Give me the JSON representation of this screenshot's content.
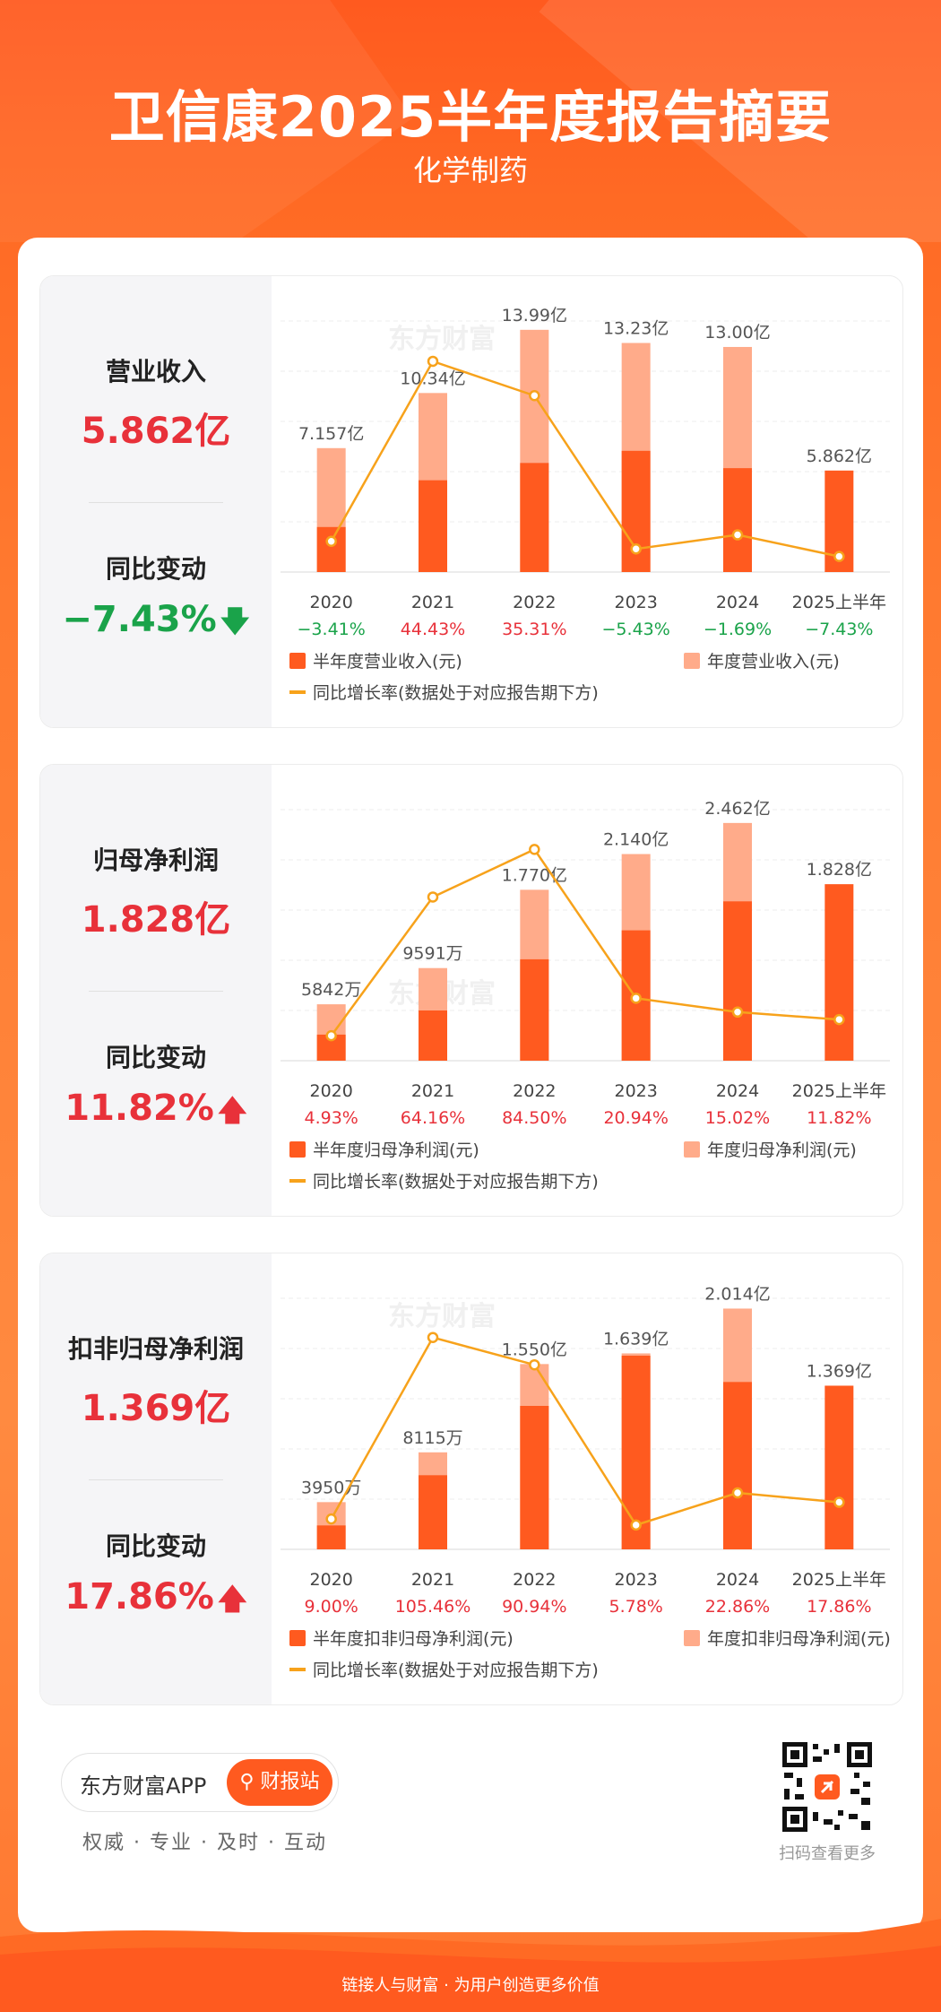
{
  "header": {
    "title": "卫信康2025半年度报告摘要",
    "subtitle": "化学制药"
  },
  "colors": {
    "bar_half": "#ff5a1f",
    "bar_annual": "#ffab8a",
    "line": "#f7a21b",
    "positive": "#e8313a",
    "negative": "#1aa34a",
    "watermark": "东方财富"
  },
  "sections": [
    {
      "metric_label": "营业收入",
      "metric_value": "5.862亿",
      "change_label": "同比变动",
      "change_value": "−7.43%",
      "change_direction": "down"
    },
    {
      "metric_label": "归母净利润",
      "metric_value": "1.828亿",
      "change_label": "同比变动",
      "change_value": "11.82%",
      "change_direction": "up"
    },
    {
      "metric_label": "扣非归母净利润",
      "metric_value": "1.369亿",
      "change_label": "同比变动",
      "change_value": "17.86%",
      "change_direction": "up"
    }
  ],
  "chart_data": [
    {
      "type": "bar",
      "categories": [
        "2020",
        "2021",
        "2022",
        "2023",
        "2024",
        "2025上半年"
      ],
      "series": [
        {
          "name": "半年度营业收入(元)",
          "values": [
            2.6,
            5.3,
            6.3,
            7.0,
            6.0,
            5.862
          ]
        },
        {
          "name": "年度营业收入(元)",
          "values": [
            7.157,
            10.34,
            13.99,
            13.23,
            13.0,
            null
          ]
        },
        {
          "name": "同比增长率(数据处于对应报告期下方)",
          "values": [
            -3.41,
            44.43,
            35.31,
            -5.43,
            -1.69,
            -7.43
          ]
        }
      ],
      "bar_labels": [
        "7.157亿",
        "10.34亿",
        "13.99亿",
        "13.23亿",
        "13.00亿",
        "5.862亿"
      ],
      "growth_labels": [
        "−3.41%",
        "44.43%",
        "35.31%",
        "−5.43%",
        "−1.69%",
        "−7.43%"
      ],
      "ylim": [
        0,
        14.5
      ],
      "line_range": [
        -8,
        48
      ],
      "grid": true
    },
    {
      "type": "bar",
      "categories": [
        "2020",
        "2021",
        "2022",
        "2023",
        "2024",
        "2025上半年"
      ],
      "series": [
        {
          "name": "半年度归母净利润(元)",
          "values": [
            0.27,
            0.52,
            1.05,
            1.35,
            1.65,
            1.828
          ]
        },
        {
          "name": "年度归母净利润(元)",
          "values": [
            0.5842,
            0.9591,
            1.77,
            2.14,
            2.462,
            null
          ]
        },
        {
          "name": "同比增长率(数据处于对应报告期下方)",
          "values": [
            4.93,
            64.16,
            84.5,
            20.94,
            15.02,
            11.82
          ]
        }
      ],
      "bar_labels": [
        "5842万",
        "9591万",
        "1.770亿",
        "2.140亿",
        "2.462亿",
        "1.828亿"
      ],
      "growth_labels": [
        "4.93%",
        "64.16%",
        "84.50%",
        "20.94%",
        "15.02%",
        "11.82%"
      ],
      "ylim": [
        0,
        2.6
      ],
      "line_range": [
        0,
        90
      ],
      "grid": true
    },
    {
      "type": "bar",
      "categories": [
        "2020",
        "2021",
        "2022",
        "2023",
        "2024",
        "2025上半年"
      ],
      "series": [
        {
          "name": "半年度扣非归母净利润(元)",
          "values": [
            0.2,
            0.62,
            1.2,
            1.62,
            1.4,
            1.369
          ]
        },
        {
          "name": "年度扣非归母净利润(元)",
          "values": [
            0.395,
            0.8115,
            1.55,
            1.639,
            2.014,
            null
          ]
        },
        {
          "name": "同比增长率(数据处于对应报告期下方)",
          "values": [
            9.0,
            105.46,
            90.94,
            5.78,
            22.86,
            17.86
          ]
        }
      ],
      "bar_labels": [
        "3950万",
        "8115万",
        "1.550亿",
        "1.639亿",
        "2.014亿",
        "1.369亿"
      ],
      "growth_labels": [
        "9.00%",
        "105.46%",
        "90.94%",
        "5.78%",
        "22.86%",
        "17.86%"
      ],
      "ylim": [
        0,
        2.1
      ],
      "line_range": [
        0,
        112
      ],
      "grid": true
    }
  ],
  "footer": {
    "app_name": "东方财富APP",
    "button_label": "财报站",
    "slogan": "权威 · 专业 · 及时 · 互动",
    "qr_caption": "扫码查看更多",
    "bottom_text": "链接人与财富 · 为用户创造更多价值"
  }
}
